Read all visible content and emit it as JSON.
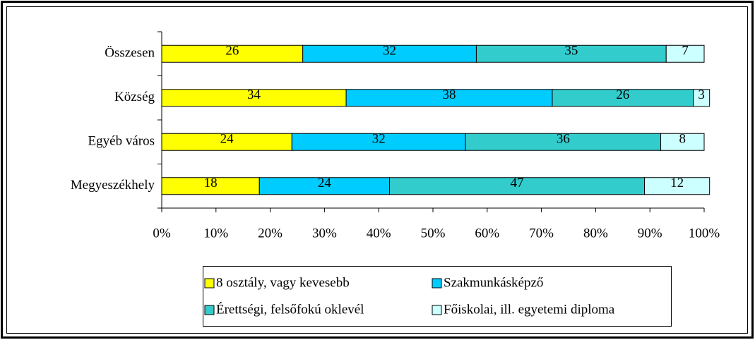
{
  "chart_data": {
    "type": "bar",
    "orientation": "horizontal",
    "stacked": true,
    "categories": [
      "Összesen",
      "Község",
      "Egyéb város",
      "Megyeszékhely"
    ],
    "series": [
      {
        "name": "8 osztály, vagy kevesebb",
        "color": "#ffff00",
        "values": [
          26,
          34,
          24,
          18
        ]
      },
      {
        "name": "Szakmunkásképző",
        "color": "#00ccff",
        "values": [
          32,
          38,
          32,
          24
        ]
      },
      {
        "name": "Érettségi, felsőfokú oklevél",
        "color": "#33cccc",
        "values": [
          35,
          26,
          36,
          47
        ]
      },
      {
        "name": "Főiskolai, ill. egyetemi diploma",
        "color": "#ccffff",
        "values": [
          7,
          3,
          8,
          12
        ]
      }
    ],
    "xlim": [
      0,
      100
    ],
    "xticks": [
      {
        "value": 0,
        "label": "0%"
      },
      {
        "value": 10,
        "label": "10%"
      },
      {
        "value": 20,
        "label": "20%"
      },
      {
        "value": 30,
        "label": "30%"
      },
      {
        "value": 40,
        "label": "40%"
      },
      {
        "value": 50,
        "label": "50%"
      },
      {
        "value": 60,
        "label": "60%"
      },
      {
        "value": 70,
        "label": "70%"
      },
      {
        "value": 80,
        "label": "80%"
      },
      {
        "value": 90,
        "label": "90%"
      },
      {
        "value": 100,
        "label": "100%"
      }
    ],
    "legend": "bottom"
  }
}
